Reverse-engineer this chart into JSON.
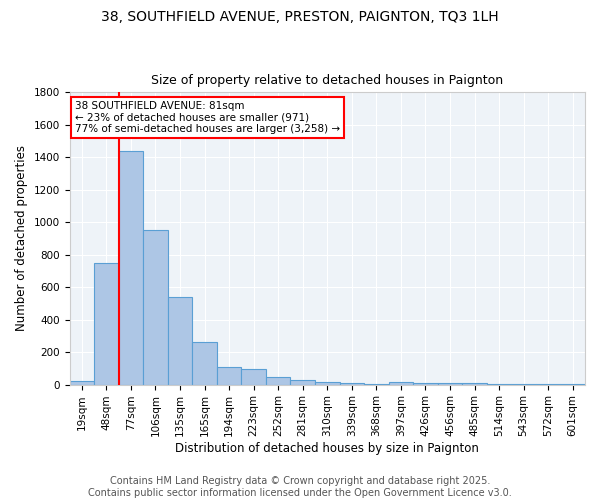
{
  "title1": "38, SOUTHFIELD AVENUE, PRESTON, PAIGNTON, TQ3 1LH",
  "title2": "Size of property relative to detached houses in Paignton",
  "xlabel": "Distribution of detached houses by size in Paignton",
  "ylabel": "Number of detached properties",
  "categories": [
    "19sqm",
    "48sqm",
    "77sqm",
    "106sqm",
    "135sqm",
    "165sqm",
    "194sqm",
    "223sqm",
    "252sqm",
    "281sqm",
    "310sqm",
    "339sqm",
    "368sqm",
    "397sqm",
    "426sqm",
    "456sqm",
    "485sqm",
    "514sqm",
    "543sqm",
    "572sqm",
    "601sqm"
  ],
  "values": [
    20,
    750,
    1440,
    950,
    540,
    265,
    108,
    95,
    45,
    28,
    15,
    8,
    5,
    14,
    10,
    12,
    8,
    4,
    2,
    2,
    2
  ],
  "bar_color": "#adc6e5",
  "bar_edge_color": "#5a9fd4",
  "red_line_index": 2,
  "annotation_text": "38 SOUTHFIELD AVENUE: 81sqm\n← 23% of detached houses are smaller (971)\n77% of semi-detached houses are larger (3,258) →",
  "annotation_box_color": "white",
  "annotation_box_edge_color": "red",
  "red_line_color": "red",
  "footer1": "Contains HM Land Registry data © Crown copyright and database right 2025.",
  "footer2": "Contains public sector information licensed under the Open Government Licence v3.0.",
  "ylim": [
    0,
    1800
  ],
  "yticks": [
    0,
    200,
    400,
    600,
    800,
    1000,
    1200,
    1400,
    1600,
    1800
  ],
  "background_color": "#eef3f8",
  "grid_color": "white",
  "title_fontsize": 10,
  "subtitle_fontsize": 9,
  "axis_fontsize": 8.5,
  "tick_fontsize": 7.5,
  "footer_fontsize": 7,
  "annotation_fontsize": 7.5
}
